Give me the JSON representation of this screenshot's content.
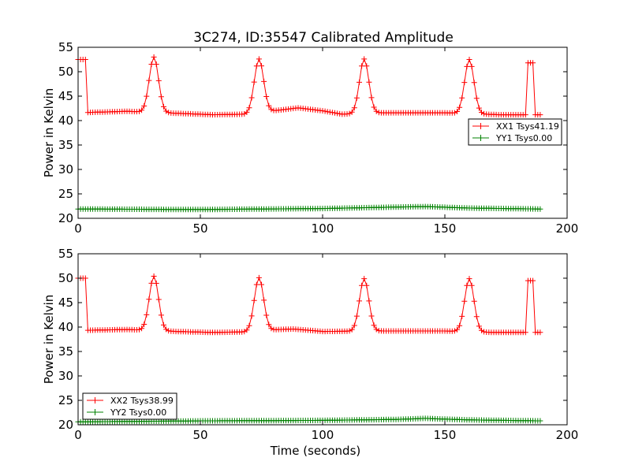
{
  "title": "3C274, ID:35547 Calibrated Amplitude",
  "chart_data": [
    {
      "type": "line",
      "title": "3C274, ID:35547 Calibrated Amplitude",
      "xlabel": "",
      "ylabel": "Power in Kelvin",
      "xlim": [
        0,
        200
      ],
      "ylim": [
        20,
        55
      ],
      "xticks": [
        "0",
        "50",
        "100",
        "150",
        "200"
      ],
      "yticks": [
        "20",
        "25",
        "30",
        "35",
        "40",
        "45",
        "50",
        "55"
      ],
      "grid": false,
      "legend": "right",
      "series": [
        {
          "name": "XX1 Tsys41.19",
          "color": "#ff0000",
          "base": 41.6,
          "base_points": [
            [
              0,
              41.6
            ],
            [
              20,
              41.9
            ],
            [
              40,
              41.5
            ],
            [
              55,
              41.2
            ],
            [
              68,
              41.3
            ],
            [
              85,
              42.3
            ],
            [
              90,
              42.6
            ],
            [
              100,
              42.0
            ],
            [
              108,
              41.3
            ],
            [
              125,
              41.6
            ],
            [
              150,
              41.6
            ],
            [
              172,
              41.2
            ],
            [
              182,
              41.2
            ]
          ],
          "start_level": 52.5,
          "start_end": 3,
          "peaks": [
            [
              31,
              53.0
            ],
            [
              74,
              52.6
            ],
            [
              117,
              52.6
            ],
            [
              160,
              52.5
            ]
          ],
          "end_window": [
            184,
            186
          ],
          "end_level": 51.8,
          "x_end": 189,
          "tail": 41.2
        },
        {
          "name": "YY1 Tsys0.00",
          "color": "#008000",
          "base_points": [
            [
              0,
              21.9
            ],
            [
              50,
              21.8
            ],
            [
              100,
              22.0
            ],
            [
              130,
              22.3
            ],
            [
              142,
              22.4
            ],
            [
              160,
              22.1
            ],
            [
              189,
              21.9
            ]
          ],
          "x_end": 189
        }
      ]
    },
    {
      "type": "line",
      "title": "",
      "xlabel": "Time (seconds)",
      "ylabel": "Power in Kelvin",
      "xlim": [
        0,
        200
      ],
      "ylim": [
        20,
        55
      ],
      "xticks": [
        "0",
        "50",
        "100",
        "150",
        "200"
      ],
      "yticks": [
        "20",
        "25",
        "30",
        "35",
        "40",
        "45",
        "50",
        "55"
      ],
      "grid": false,
      "legend": "bottom-left",
      "series": [
        {
          "name": "XX2 Tsys38.99",
          "color": "#ff0000",
          "base_points": [
            [
              0,
              39.3
            ],
            [
              20,
              39.5
            ],
            [
              40,
              39.1
            ],
            [
              55,
              38.9
            ],
            [
              68,
              39.0
            ],
            [
              82,
              39.5
            ],
            [
              88,
              39.6
            ],
            [
              100,
              39.1
            ],
            [
              125,
              39.2
            ],
            [
              150,
              39.2
            ],
            [
              170,
              38.9
            ],
            [
              182,
              38.9
            ]
          ],
          "start_level": 50.0,
          "start_end": 3,
          "peaks": [
            [
              31,
              50.4
            ],
            [
              74,
              50.1
            ],
            [
              117,
              49.9
            ],
            [
              160,
              49.9
            ]
          ],
          "end_window": [
            184,
            186
          ],
          "end_level": 49.5,
          "x_end": 189,
          "tail": 38.9
        },
        {
          "name": "YY2 Tsys0.00",
          "color": "#008000",
          "base_points": [
            [
              0,
              20.6
            ],
            [
              50,
              20.8
            ],
            [
              100,
              20.9
            ],
            [
              130,
              21.1
            ],
            [
              142,
              21.3
            ],
            [
              160,
              21.0
            ],
            [
              189,
              20.8
            ]
          ],
          "x_end": 189
        }
      ]
    }
  ]
}
